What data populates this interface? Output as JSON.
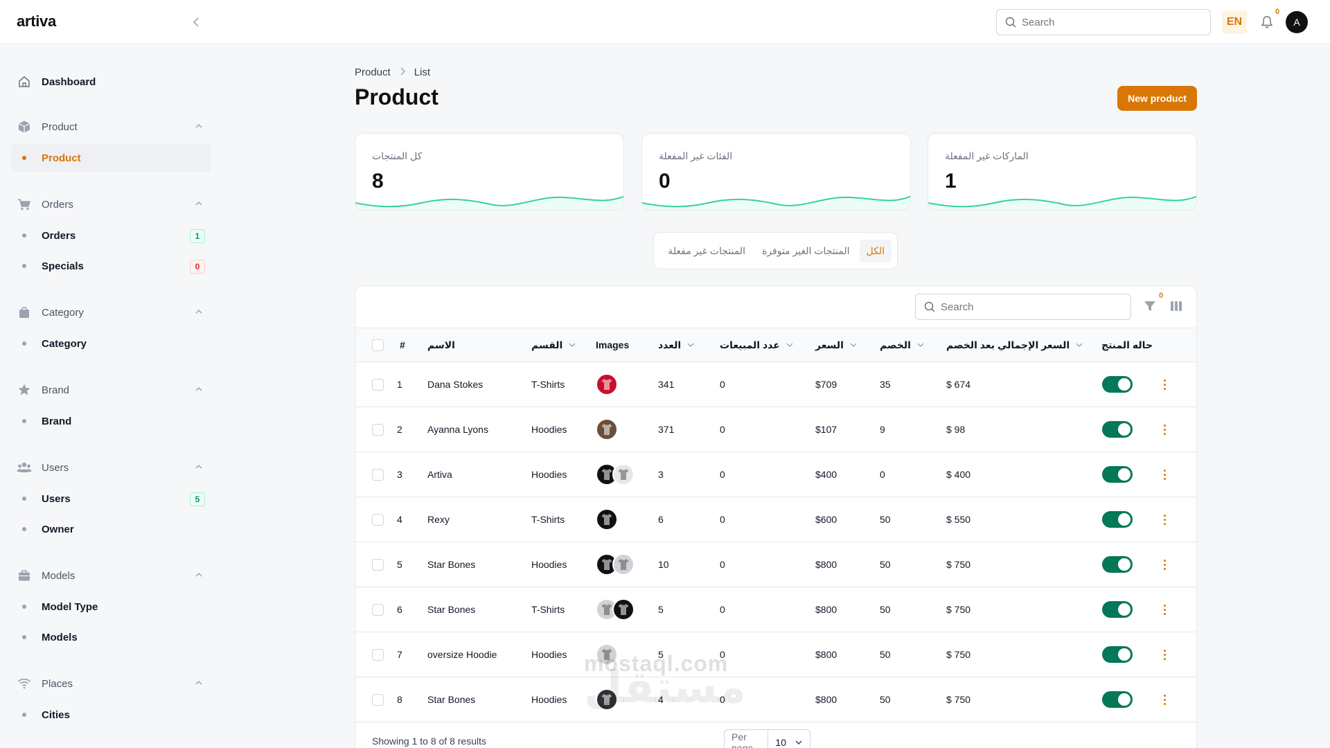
{
  "app": {
    "logo": "artiva",
    "search_placeholder": "Search",
    "lang": "EN",
    "notif_count": "0",
    "avatar_initial": "A"
  },
  "sidebar": {
    "dashboard": "Dashboard",
    "groups": [
      {
        "label": "Product",
        "icon": "cube-icon",
        "items": [
          {
            "label": "Product",
            "active": true
          }
        ]
      },
      {
        "label": "Orders",
        "icon": "cart-icon",
        "items": [
          {
            "label": "Orders",
            "badge": "1",
            "badge_color": "green"
          },
          {
            "label": "Specials",
            "badge": "0",
            "badge_color": "red"
          }
        ]
      },
      {
        "label": "Category",
        "icon": "bag-icon",
        "items": [
          {
            "label": "Category"
          }
        ]
      },
      {
        "label": "Brand",
        "icon": "star-icon",
        "items": [
          {
            "label": "Brand"
          }
        ]
      },
      {
        "label": "Users",
        "icon": "users-icon",
        "items": [
          {
            "label": "Users",
            "badge": "5",
            "badge_color": "green"
          },
          {
            "label": "Owner"
          }
        ]
      },
      {
        "label": "Models",
        "icon": "briefcase-icon",
        "items": [
          {
            "label": "Model Type"
          },
          {
            "label": "Models"
          }
        ]
      },
      {
        "label": "Places",
        "icon": "wifi-icon",
        "items": [
          {
            "label": "Cities"
          }
        ]
      }
    ]
  },
  "breadcrumb": {
    "first": "Product",
    "second": "List"
  },
  "page": {
    "title": "Product",
    "new_button": "New product"
  },
  "stats": [
    {
      "label": "كل المنتجات",
      "value": "8"
    },
    {
      "label": "الفئات غير المفعلة",
      "value": "0"
    },
    {
      "label": "الماركات غير المفعلة",
      "value": "1"
    }
  ],
  "tabs": [
    {
      "label": "الكل",
      "active": true
    },
    {
      "label": "المنتجات الغير متوفرة"
    },
    {
      "label": "المنتجات غير مفعلة"
    }
  ],
  "table": {
    "search_placeholder": "Search",
    "filter_count": "0",
    "headers": {
      "index": "#",
      "name": "الاسم",
      "category": "القسم",
      "images": "Images",
      "count": "العدد",
      "sales": "عدد المبيعات",
      "price": "السعر",
      "discount": "الخصم",
      "total": "السعر الإجمالي بعد الخصم",
      "status": "حاله المنتج"
    },
    "rows": [
      {
        "index": "1",
        "name": "Dana Stokes",
        "category": "T-Shirts",
        "images": [
          "red"
        ],
        "count": "341",
        "sales": "0",
        "price": "$709",
        "discount": "35",
        "total": "$ 674"
      },
      {
        "index": "2",
        "name": "Ayanna Lyons",
        "category": "Hoodies",
        "images": [
          "brown"
        ],
        "count": "371",
        "sales": "0",
        "price": "$107",
        "discount": "9",
        "total": "$ 98"
      },
      {
        "index": "3",
        "name": "Artiva",
        "category": "Hoodies",
        "images": [
          "black",
          "white"
        ],
        "count": "3",
        "sales": "0",
        "price": "$400",
        "discount": "0",
        "total": "$ 400"
      },
      {
        "index": "4",
        "name": "Rexy",
        "category": "T-Shirts",
        "images": [
          "black"
        ],
        "count": "6",
        "sales": "0",
        "price": "$600",
        "discount": "50",
        "total": "$ 550"
      },
      {
        "index": "5",
        "name": "Star Bones",
        "category": "Hoodies",
        "images": [
          "black",
          "gray"
        ],
        "count": "10",
        "sales": "0",
        "price": "$800",
        "discount": "50",
        "total": "$ 750"
      },
      {
        "index": "6",
        "name": "Star Bones",
        "category": "T-Shirts",
        "images": [
          "gray",
          "black"
        ],
        "count": "5",
        "sales": "0",
        "price": "$800",
        "discount": "50",
        "total": "$ 750"
      },
      {
        "index": "7",
        "name": "oversize Hoodie",
        "category": "Hoodies",
        "images": [
          "gray"
        ],
        "count": "5",
        "sales": "0",
        "price": "$800",
        "discount": "50",
        "total": "$ 750"
      },
      {
        "index": "8",
        "name": "Star Bones",
        "category": "Hoodies",
        "images": [
          "darkgray"
        ],
        "count": "4",
        "sales": "0",
        "price": "$800",
        "discount": "50",
        "total": "$ 750"
      }
    ],
    "footer": "Showing 1 to 8 of 8 results",
    "per_page_label": "Per page",
    "per_page_value": "10"
  },
  "watermark": {
    "text": "mostaql.com",
    "arabic": "مستقل"
  },
  "colors": {
    "accent": "#d97706",
    "toggle_on": "#047857",
    "wave": "#34d399"
  }
}
